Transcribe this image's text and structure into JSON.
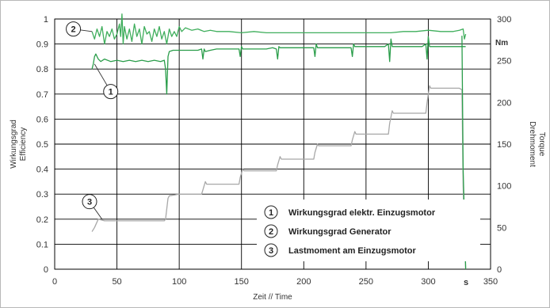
{
  "chart_data": {
    "type": "line",
    "xlabel": "Zeit  // Time",
    "ylabel_left": [
      "Wirkungsgrad",
      "Efficiency"
    ],
    "ylabel_right": [
      "Drehmoment",
      "Torque"
    ],
    "right_unit": "Nm",
    "xlim": [
      0,
      350
    ],
    "ylim_left": [
      0,
      1
    ],
    "ylim_right": [
      0,
      300
    ],
    "x_ticks": [
      "0",
      "50",
      "100",
      "150",
      "200",
      "250",
      "300",
      "350"
    ],
    "y_left_ticks": [
      "0",
      "0.1",
      "0.2",
      "0.3",
      "0.4",
      "0.5",
      "0.6",
      "0.7",
      "0.8",
      "0.9",
      "1"
    ],
    "y_right_ticks": [
      "0",
      "50",
      "100",
      "150",
      "200",
      "250",
      "300"
    ],
    "x_marker": "s",
    "grid": true,
    "legend_position": "bottom-right",
    "legend": [
      {
        "num": "1",
        "label": "Wirkungsgrad elektr. Einzugsmotor"
      },
      {
        "num": "2",
        "label": "Wirkungsgrad Generator"
      },
      {
        "num": "3",
        "label": "Lastmoment am Einzugsmotor"
      }
    ],
    "callouts": [
      {
        "num": "1",
        "x": 45,
        "y": 0.71
      },
      {
        "num": "2",
        "x": 15,
        "y": 0.96
      },
      {
        "num": "3",
        "x": 28,
        "y": 0.27
      }
    ],
    "series": [
      {
        "id": "1",
        "color": "#2a9d4a",
        "axis": "left",
        "x": [
          30,
          31,
          32,
          33,
          35,
          37,
          40,
          45,
          50,
          55,
          60,
          65,
          70,
          75,
          80,
          85,
          88,
          89,
          90,
          91,
          92,
          95,
          100,
          105,
          110,
          115,
          118,
          119,
          120,
          121,
          125,
          130,
          140,
          145,
          148,
          149,
          150,
          151,
          155,
          160,
          170,
          175,
          178,
          179,
          180,
          181,
          185,
          190,
          200,
          205,
          208,
          209,
          210,
          211,
          215,
          220,
          230,
          235,
          238,
          239,
          240,
          241,
          245,
          250,
          260,
          265,
          268,
          269,
          270,
          271,
          275,
          280,
          290,
          295,
          298,
          299,
          300,
          301,
          305,
          310,
          320,
          325,
          330
        ],
        "y": [
          0.8,
          0.82,
          0.85,
          0.86,
          0.84,
          0.83,
          0.84,
          0.83,
          0.835,
          0.83,
          0.835,
          0.83,
          0.835,
          0.83,
          0.835,
          0.83,
          0.835,
          0.8,
          0.7,
          0.85,
          0.87,
          0.875,
          0.875,
          0.875,
          0.875,
          0.875,
          0.88,
          0.84,
          0.88,
          0.87,
          0.875,
          0.88,
          0.88,
          0.88,
          0.88,
          0.85,
          0.89,
          0.88,
          0.88,
          0.88,
          0.88,
          0.885,
          0.88,
          0.84,
          0.89,
          0.885,
          0.885,
          0.885,
          0.885,
          0.885,
          0.885,
          0.85,
          0.9,
          0.885,
          0.885,
          0.885,
          0.885,
          0.885,
          0.885,
          0.85,
          0.9,
          0.89,
          0.89,
          0.89,
          0.89,
          0.89,
          0.9,
          0.83,
          0.92,
          0.89,
          0.89,
          0.89,
          0.89,
          0.89,
          0.9,
          0.84,
          0.93,
          0.89,
          0.89,
          0.89,
          0.89,
          0.89,
          0.89
        ]
      },
      {
        "id": "2",
        "color": "#3fae5c",
        "axis": "left",
        "x": [
          30,
          32,
          34,
          36,
          38,
          40,
          42,
          44,
          46,
          48,
          50,
          52,
          53,
          54,
          55,
          56,
          58,
          60,
          62,
          64,
          66,
          68,
          70,
          72,
          74,
          76,
          78,
          80,
          82,
          84,
          86,
          88,
          90,
          92,
          94,
          96,
          98,
          100,
          102,
          105,
          110,
          115,
          120,
          125,
          130,
          140,
          150,
          160,
          170,
          180,
          190,
          200,
          210,
          220,
          230,
          240,
          250,
          260,
          270,
          280,
          290,
          300,
          310,
          320,
          325,
          328,
          329,
          330
        ],
        "y": [
          0.95,
          0.92,
          0.96,
          0.93,
          0.97,
          0.9,
          0.95,
          0.93,
          0.96,
          0.92,
          0.94,
          0.98,
          0.93,
          1.02,
          0.9,
          0.97,
          0.92,
          0.96,
          0.91,
          0.98,
          0.93,
          0.96,
          0.9,
          0.97,
          0.94,
          0.95,
          0.91,
          0.96,
          0.93,
          0.97,
          0.92,
          0.95,
          0.9,
          0.96,
          0.93,
          0.95,
          0.93,
          0.97,
          0.95,
          0.965,
          0.955,
          0.96,
          0.95,
          0.955,
          0.95,
          0.95,
          0.945,
          0.95,
          0.945,
          0.945,
          0.945,
          0.945,
          0.945,
          0.945,
          0.945,
          0.945,
          0.945,
          0.945,
          0.945,
          0.95,
          0.95,
          0.955,
          0.95,
          0.95,
          0.955,
          0.96,
          0.92,
          0.94
        ]
      },
      {
        "id": "3",
        "color": "#a8a8a8",
        "axis": "right",
        "x": [
          30,
          32,
          35,
          40,
          60,
          80,
          88,
          89,
          91,
          92,
          100,
          118,
          119,
          121,
          122,
          130,
          148,
          149,
          151,
          152,
          160,
          178,
          179,
          181,
          182,
          190,
          208,
          209,
          211,
          212,
          220,
          238,
          239,
          241,
          242,
          250,
          268,
          269,
          271,
          272,
          280,
          298,
          299,
          301,
          302,
          310,
          325,
          327,
          328,
          330
        ],
        "y": [
          45,
          50,
          60,
          58,
          58,
          58,
          58,
          60,
          85,
          88,
          90,
          90,
          95,
          105,
          102,
          102,
          102,
          110,
          120,
          118,
          118,
          118,
          125,
          135,
          132,
          132,
          132,
          140,
          150,
          148,
          148,
          148,
          155,
          165,
          162,
          162,
          162,
          175,
          190,
          187,
          187,
          187,
          200,
          220,
          217,
          217,
          217,
          215,
          100,
          0
        ]
      },
      {
        "id": "3-drop",
        "color": "#2a9d4a",
        "axis": "right",
        "x": [
          327,
          328,
          329,
          330
        ],
        "y": [
          280,
          120,
          60,
          0
        ]
      }
    ]
  }
}
